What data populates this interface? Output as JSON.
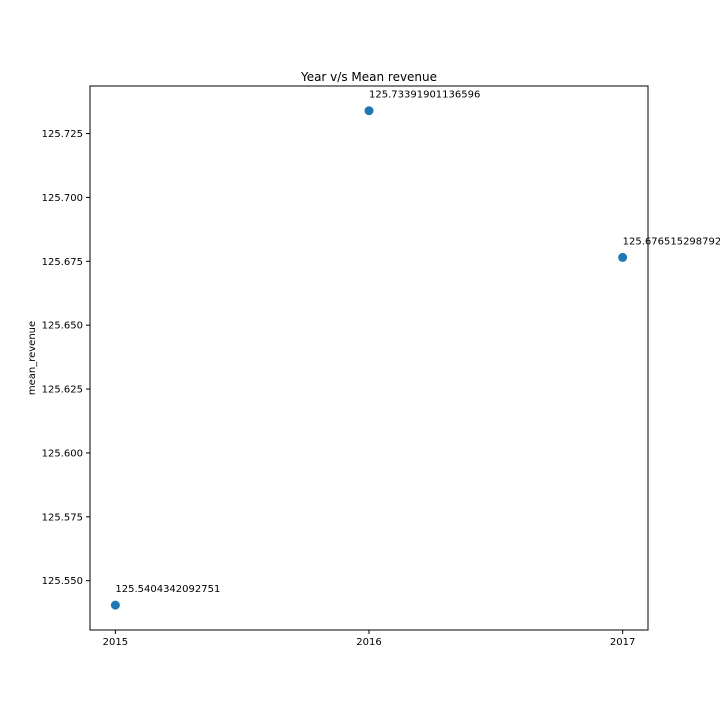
{
  "chart_data": {
    "type": "scatter",
    "title": "Year v/s Mean revenue",
    "xlabel": "",
    "ylabel": "mean_revenue",
    "x": [
      2015,
      2016,
      2017
    ],
    "y": [
      125.5404342092751,
      125.73391901136596,
      125.676515298792
    ],
    "point_labels": [
      "125.5404342092751",
      "125.73391901136596",
      "125.676515298792"
    ],
    "x_ticks": [
      "2015",
      "2016",
      "2017"
    ],
    "y_ticks": [
      "125.550",
      "125.575",
      "125.600",
      "125.625",
      "125.650",
      "125.675",
      "125.700",
      "125.725"
    ],
    "xlim": [
      2014.9,
      2017.1
    ],
    "ylim": [
      125.5307,
      125.7436
    ],
    "grid": false,
    "marker_color": "#1f77b4"
  }
}
